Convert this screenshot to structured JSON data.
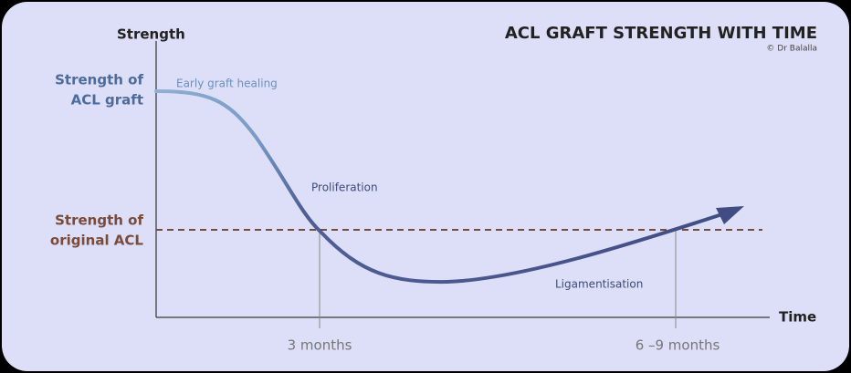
{
  "header": {
    "title": "ACL GRAFT STRENGTH WITH TIME",
    "credit": "© Dr Balalla"
  },
  "axes": {
    "y_label": "Strength",
    "x_label": "Time"
  },
  "levels": {
    "graft": [
      "Strength of",
      "ACL graft"
    ],
    "original": [
      "Strength of",
      "original ACL"
    ]
  },
  "phases": [
    "Early graft healing",
    "Proliferation",
    "Ligamentisation"
  ],
  "time_markers": [
    "3 months",
    "6 –9 months"
  ]
}
